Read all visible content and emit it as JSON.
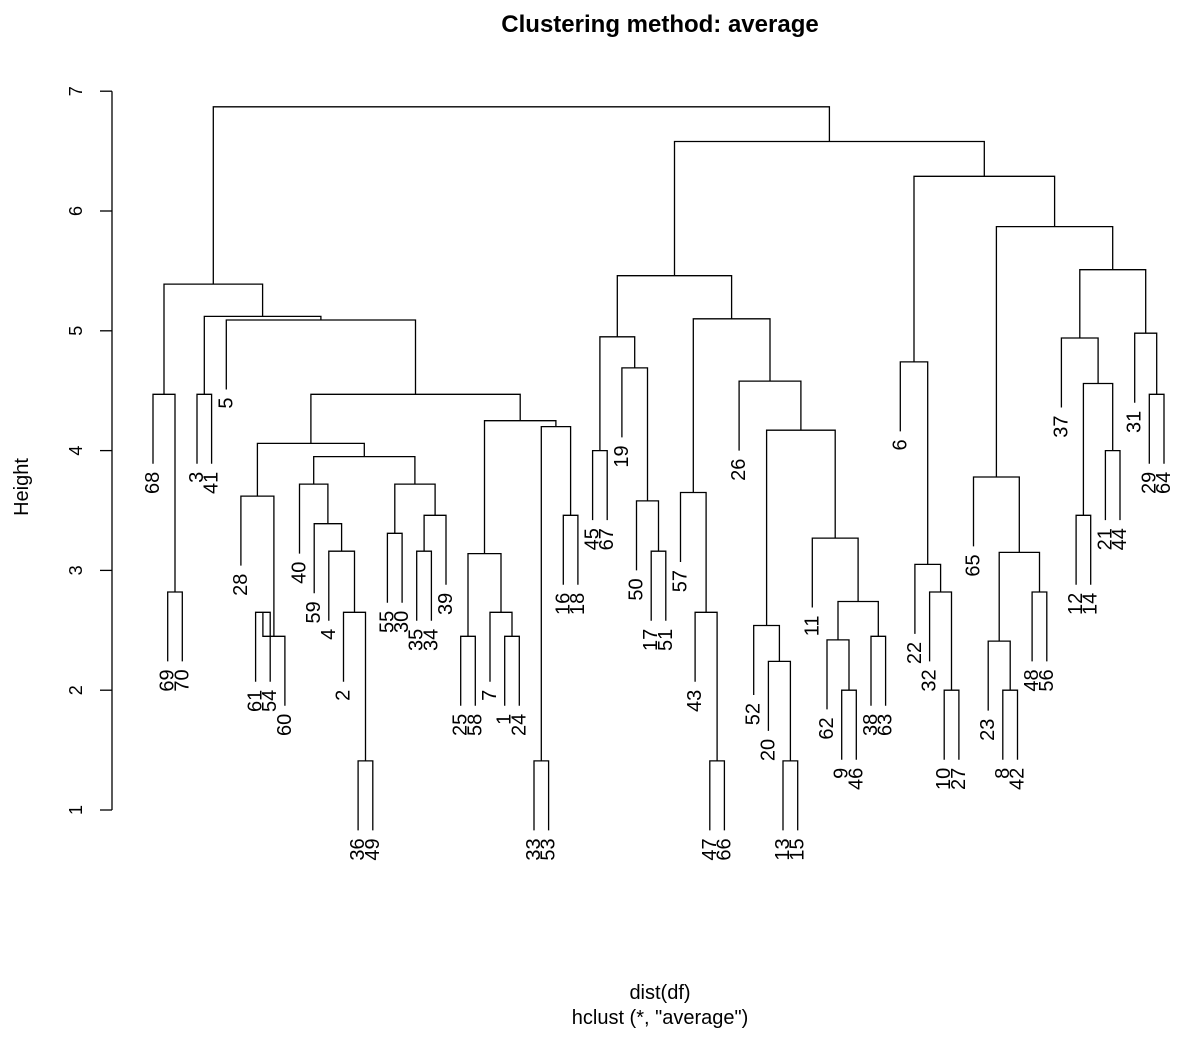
{
  "chart_data": {
    "type": "dendrogram",
    "title": "Clustering method: average",
    "xlabel": "dist(df)",
    "sublabel": "hclust (*, \"average\")",
    "ylabel": "Height",
    "ylim": [
      0.8,
      7.0
    ],
    "yticks": [
      1,
      2,
      3,
      4,
      5,
      6,
      7
    ],
    "leaf_order": [
      68,
      69,
      70,
      3,
      41,
      5,
      28,
      61,
      54,
      60,
      40,
      59,
      4,
      2,
      36,
      49,
      55,
      30,
      35,
      34,
      39,
      25,
      58,
      7,
      1,
      24,
      33,
      53,
      16,
      18,
      45,
      67,
      19,
      50,
      17,
      51,
      57,
      43,
      47,
      66,
      26,
      52,
      20,
      13,
      15,
      11,
      62,
      9,
      46,
      38,
      63,
      6,
      22,
      32,
      10,
      27,
      65,
      23,
      8,
      42,
      48,
      56,
      37,
      12,
      14,
      21,
      44,
      31,
      29,
      64
    ],
    "merges": [
      [
        -69,
        -70,
        2.82
      ],
      [
        -68,
        1,
        4.47
      ],
      [
        -3,
        -41,
        4.47
      ],
      [
        -61,
        -54,
        2.65
      ],
      [
        4,
        -60,
        2.45
      ],
      [
        -28,
        5,
        3.62
      ],
      [
        -36,
        -49,
        1.41
      ],
      [
        -2,
        7,
        2.65
      ],
      [
        -4,
        8,
        3.16
      ],
      [
        -59,
        9,
        3.39
      ],
      [
        -40,
        10,
        3.72
      ],
      [
        -55,
        -30,
        3.31
      ],
      [
        -35,
        -34,
        3.16
      ],
      [
        13,
        -39,
        3.46
      ],
      [
        12,
        14,
        3.72
      ],
      [
        11,
        15,
        3.95
      ],
      [
        6,
        16,
        4.06
      ],
      [
        -25,
        -58,
        2.45
      ],
      [
        -1,
        -24,
        2.45
      ],
      [
        -7,
        19,
        2.65
      ],
      [
        18,
        20,
        3.14
      ],
      [
        -33,
        -53,
        1.41
      ],
      [
        -16,
        -18,
        3.46
      ],
      [
        22,
        23,
        4.2
      ],
      [
        21,
        24,
        4.25
      ],
      [
        17,
        25,
        4.47
      ],
      [
        -5,
        26,
        5.09
      ],
      [
        3,
        27,
        5.12
      ],
      [
        2,
        28,
        5.39
      ],
      [
        -45,
        -67,
        4.0
      ],
      [
        -17,
        -51,
        3.16
      ],
      [
        -50,
        31,
        3.58
      ],
      [
        -19,
        32,
        4.69
      ],
      [
        30,
        33,
        4.95
      ],
      [
        -47,
        -66,
        1.41
      ],
      [
        -43,
        35,
        2.65
      ],
      [
        -57,
        36,
        3.65
      ],
      [
        -13,
        -15,
        1.41
      ],
      [
        -20,
        38,
        2.24
      ],
      [
        -52,
        39,
        2.54
      ],
      [
        -9,
        -46,
        2.0
      ],
      [
        -62,
        41,
        2.42
      ],
      [
        -38,
        -63,
        2.45
      ],
      [
        42,
        43,
        2.74
      ],
      [
        -11,
        44,
        3.27
      ],
      [
        40,
        45,
        4.17
      ],
      [
        -26,
        46,
        4.58
      ],
      [
        37,
        47,
        5.1
      ],
      [
        34,
        48,
        5.46
      ],
      [
        -10,
        -27,
        2.0
      ],
      [
        -32,
        50,
        2.82
      ],
      [
        -22,
        51,
        3.05
      ],
      [
        -6,
        52,
        4.74
      ],
      [
        -8,
        -42,
        2.0
      ],
      [
        -23,
        54,
        2.41
      ],
      [
        -48,
        -56,
        2.82
      ],
      [
        55,
        56,
        3.15
      ],
      [
        -65,
        57,
        3.78
      ],
      [
        -12,
        -14,
        3.46
      ],
      [
        -21,
        -44,
        4.0
      ],
      [
        59,
        60,
        4.56
      ],
      [
        -37,
        61,
        4.94
      ],
      [
        -29,
        -64,
        4.47
      ],
      [
        -31,
        63,
        4.98
      ],
      [
        62,
        64,
        5.51
      ],
      [
        58,
        65,
        5.87
      ],
      [
        53,
        66,
        6.29
      ],
      [
        49,
        67,
        6.58
      ],
      [
        29,
        68,
        6.87
      ]
    ]
  }
}
